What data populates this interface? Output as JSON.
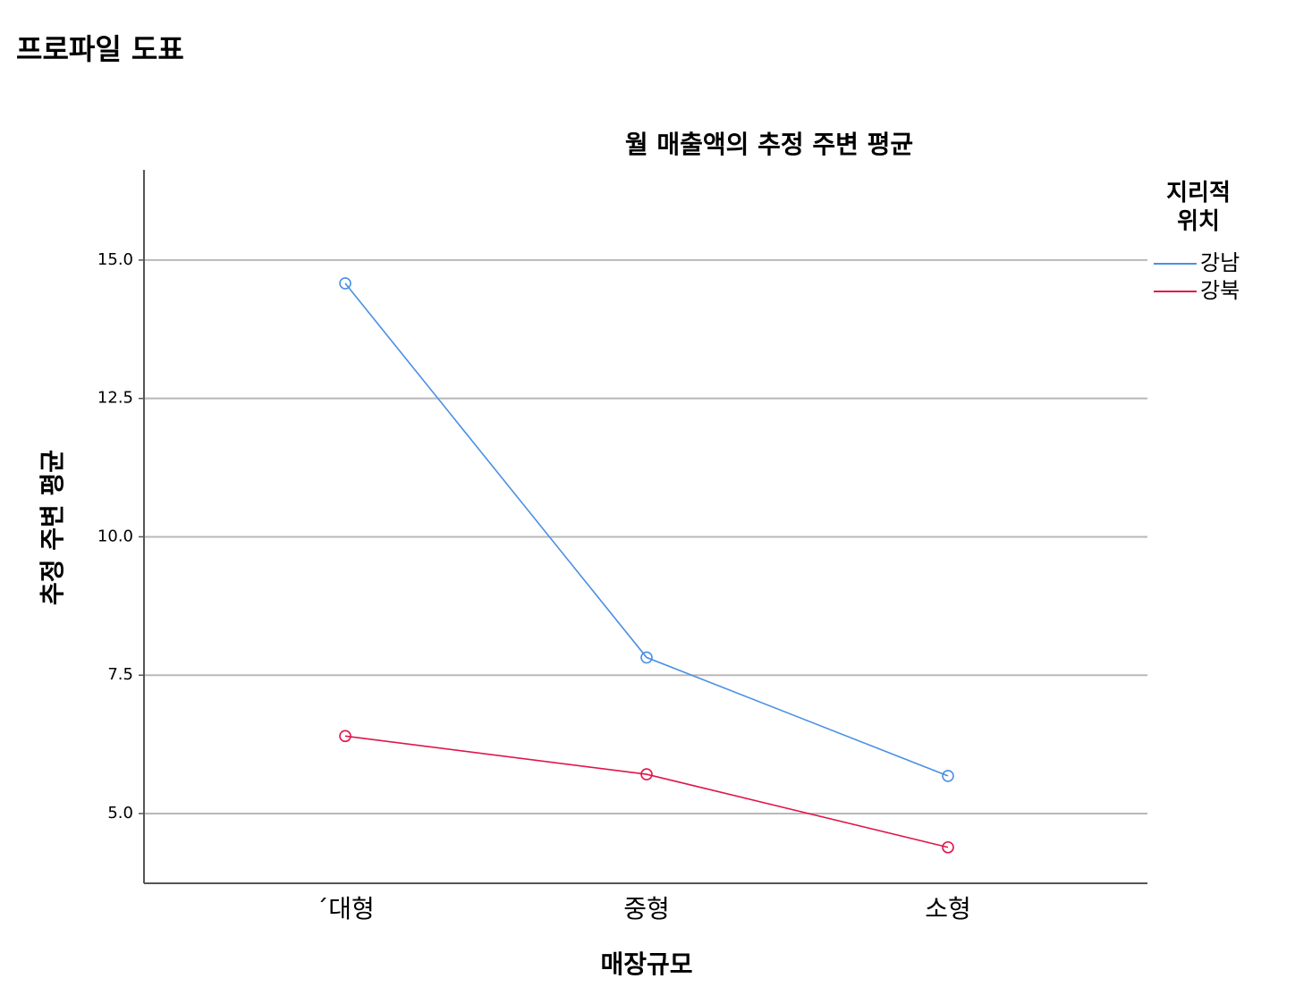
{
  "page": {
    "title": "프로파일 도표"
  },
  "chart_data": {
    "type": "line",
    "title": "월 매출액의 추정 주변 평균",
    "x_label": "매장규모",
    "y_label": "추정 주변 평균",
    "categories": [
      "´대형",
      "중형",
      "소형"
    ],
    "legend_title": "지리적 위치",
    "legend_position": "right",
    "series": [
      {
        "name": "강남",
        "color": "#4a90e2",
        "values": [
          14.58,
          7.82,
          5.68
        ]
      },
      {
        "name": "강북",
        "color": "#e0164a",
        "values": [
          6.4,
          5.71,
          4.39
        ]
      }
    ],
    "ylim": [
      3.74,
      16.63
    ],
    "yticks": [
      {
        "value": 5,
        "label": "5.0"
      },
      7.5,
      {
        "value": 10,
        "label": "10.0"
      },
      12.5,
      {
        "value": 15,
        "label": "15.0"
      }
    ],
    "grid": true
  }
}
